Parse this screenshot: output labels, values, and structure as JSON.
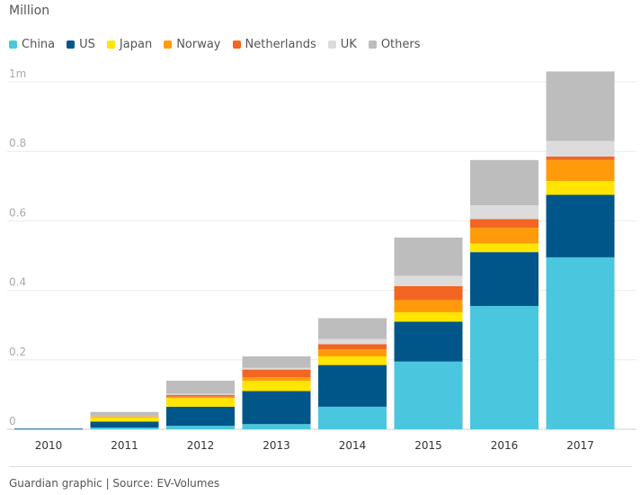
{
  "chart_data": {
    "type": "bar",
    "stacked": true,
    "unit_label": "Million",
    "categories": [
      "2010",
      "2011",
      "2012",
      "2013",
      "2014",
      "2015",
      "2016",
      "2017"
    ],
    "y_ticks": [
      {
        "value": 0,
        "label": "0"
      },
      {
        "value": 0.2,
        "label": "0.2"
      },
      {
        "value": 0.4,
        "label": "0.4"
      },
      {
        "value": 0.6,
        "label": "0.6"
      },
      {
        "value": 0.8,
        "label": "0.8"
      },
      {
        "value": 1.0,
        "label": "1m"
      }
    ],
    "ylim": [
      0,
      1.0
    ],
    "grid": true,
    "legend_position": "top-left",
    "series": [
      {
        "name": "China",
        "color": "#4bc6df",
        "values": [
          0.001,
          0.005,
          0.01,
          0.015,
          0.065,
          0.195,
          0.355,
          0.495
        ]
      },
      {
        "name": "US",
        "color": "#005689",
        "values": [
          0.001,
          0.017,
          0.055,
          0.095,
          0.12,
          0.115,
          0.155,
          0.18
        ]
      },
      {
        "name": "Japan",
        "color": "#ffe500",
        "values": [
          0.0,
          0.013,
          0.025,
          0.03,
          0.025,
          0.027,
          0.025,
          0.04
        ]
      },
      {
        "name": "Norway",
        "color": "#ff9b0b",
        "values": [
          0.0,
          0.002,
          0.004,
          0.01,
          0.02,
          0.035,
          0.045,
          0.06
        ]
      },
      {
        "name": "Netherlands",
        "color": "#f26522",
        "values": [
          0.0,
          0.001,
          0.005,
          0.022,
          0.015,
          0.04,
          0.025,
          0.01
        ]
      },
      {
        "name": "UK",
        "color": "#dcdcdc",
        "values": [
          0.0,
          0.001,
          0.003,
          0.005,
          0.015,
          0.03,
          0.04,
          0.045
        ]
      },
      {
        "name": "Others",
        "color": "#bdbdbd",
        "values": [
          0.0,
          0.011,
          0.038,
          0.033,
          0.06,
          0.11,
          0.13,
          0.2
        ]
      }
    ],
    "source": "Guardian graphic | Source: EV-Volumes"
  }
}
